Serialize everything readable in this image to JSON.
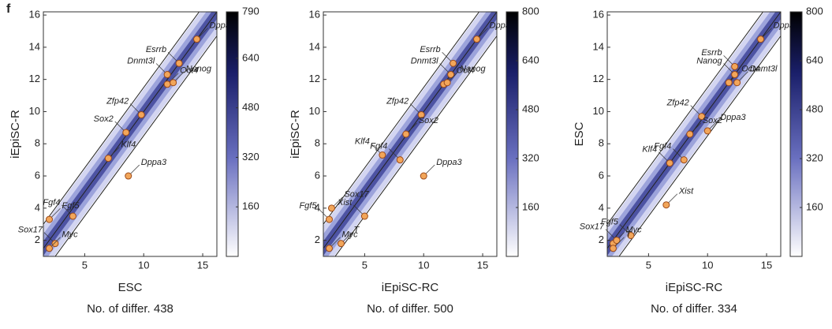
{
  "panel_label": "f",
  "chart_data": [
    {
      "type": "scatter",
      "x_label": "ESC",
      "subtitle": "No. of differ. 438",
      "y_label": "iEpiSC-R",
      "xlim": [
        1.5,
        16.2
      ],
      "ylim": [
        1,
        16.2
      ],
      "xticks": [
        5,
        10,
        15
      ],
      "yticks": [
        2,
        4,
        6,
        8,
        10,
        12,
        14,
        16
      ],
      "diagonals": [
        -1.5,
        0,
        1.5
      ],
      "labels": [
        "Dppa5",
        "Dnmt3l",
        "Oct4",
        "Esrrb",
        "Nanog",
        "Sox2",
        "Klf4",
        "Zfp42",
        "Dppa3",
        "Fgf4",
        "Fgf5",
        "Sox17",
        "Myc"
      ],
      "x": [
        14.5,
        12,
        12,
        13,
        12.5,
        8.5,
        7,
        9.8,
        8.7,
        4,
        2,
        2.5,
        2
      ],
      "y": [
        14.5,
        12.3,
        11.7,
        13,
        11.8,
        8.7,
        7.1,
        9.8,
        6,
        3.5,
        3.3,
        1.8,
        1.5
      ],
      "colorbar": {
        "lim": [
          0,
          790
        ],
        "ticks": [
          160,
          320,
          480,
          640,
          790
        ]
      }
    },
    {
      "type": "scatter",
      "x_label": "iEpiSC-RC",
      "subtitle": "No. of differ. 500",
      "y_label": "iEpiSC-R",
      "xlim": [
        1.5,
        16.2
      ],
      "ylim": [
        1,
        16.2
      ],
      "xticks": [
        5,
        10,
        15
      ],
      "yticks": [
        2,
        4,
        6,
        8,
        10,
        12,
        14,
        16
      ],
      "diagonals": [
        -1.5,
        0,
        1.5
      ],
      "labels": [
        "Dppa5",
        "Esrrb",
        "Oct4",
        "Dnmt3l",
        "Nanog",
        "Zfp42",
        "Sox2",
        "Klf4",
        "Myc",
        "Fgf5",
        "Sox17",
        "Fgf4",
        "Dppa3",
        "Xist",
        "T"
      ],
      "x": [
        14.5,
        12.5,
        11.7,
        12.3,
        12,
        9.8,
        8.5,
        6.5,
        2,
        2,
        2.2,
        8,
        10,
        5,
        3
      ],
      "y": [
        14.5,
        13,
        11.7,
        12.3,
        11.8,
        9.8,
        8.6,
        7.3,
        1.5,
        3.3,
        4,
        7,
        6,
        3.5,
        1.8
      ],
      "colorbar": {
        "lim": [
          0,
          800
        ],
        "ticks": [
          160,
          320,
          480,
          640,
          800
        ]
      }
    },
    {
      "type": "scatter",
      "x_label": "iEpiSC-RC",
      "subtitle": "No. of differ. 334",
      "y_label": "ESC",
      "xlim": [
        1.5,
        16.2
      ],
      "ylim": [
        1,
        16.2
      ],
      "xticks": [
        5,
        10,
        15
      ],
      "yticks": [
        2,
        4,
        6,
        8,
        10,
        12,
        14,
        16
      ],
      "diagonals": [
        -1.5,
        0,
        1.5
      ],
      "labels": [
        "Dppa5",
        "Esrrb",
        "Oct4",
        "Nanog",
        "Dnmt3l",
        "Zfp42",
        "Sox2",
        "Klf4",
        "Dppa3",
        "Fgf4",
        "Myc",
        "Sox17",
        "Xist",
        "Fgf5",
        "T"
      ],
      "x": [
        14.5,
        12.3,
        11.8,
        12.3,
        12.5,
        9.5,
        8.5,
        6.8,
        10,
        8,
        2,
        2.3,
        6.5,
        3.5,
        2
      ],
      "y": [
        14.5,
        12.8,
        11.8,
        12.3,
        11.8,
        9.7,
        8.6,
        6.8,
        8.8,
        7,
        1.8,
        2,
        4.2,
        2.3,
        1.5
      ],
      "colorbar": {
        "lim": [
          0,
          800
        ],
        "ticks": [
          160,
          320,
          480,
          640,
          800
        ]
      }
    }
  ]
}
